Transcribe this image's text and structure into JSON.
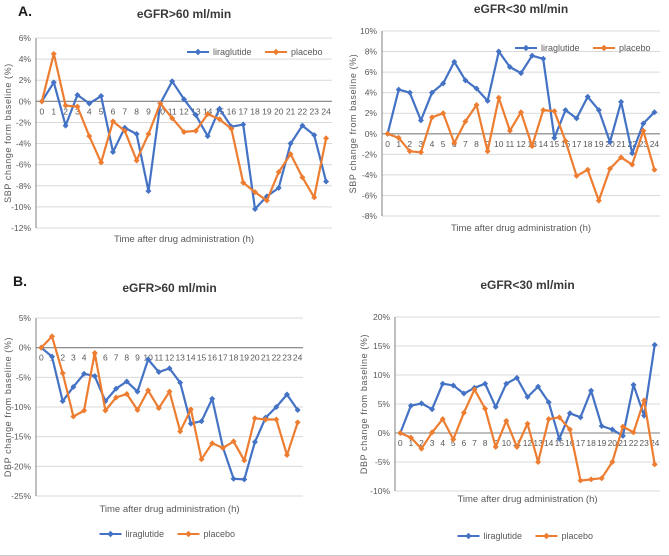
{
  "panels": {
    "a": "A.",
    "b": "B."
  },
  "colors": {
    "liraglutide": "#4472C4",
    "placebo": "#ED7D31",
    "gridline": "#D9D9D9",
    "axis": "#7F7F7F",
    "tick_text": "#595959",
    "title_text": "#3A3A3A"
  },
  "chart_data": [
    {
      "id": "sbp-egfr-gt60",
      "type": "line",
      "panel": "A",
      "title": "eGFR>60 ml/min",
      "xlabel": "Time after drug administration (h)",
      "ylabel": "SBP change form baseline (%)",
      "ylim": [
        -12,
        6
      ],
      "ytick_step": 2,
      "ytick_suffix": "%",
      "grid": true,
      "legend_position": "inside-top-right",
      "x": [
        0,
        1,
        2,
        3,
        4,
        5,
        6,
        7,
        8,
        9,
        10,
        11,
        12,
        13,
        14,
        15,
        16,
        17,
        18,
        19,
        20,
        21,
        22,
        23,
        24
      ],
      "series": [
        {
          "name": "liraglutide",
          "color": "#4472C4",
          "values": [
            0,
            1.8,
            -2.3,
            0.6,
            -0.2,
            0.5,
            -4.8,
            -2.5,
            -3.1,
            -8.5,
            -0.2,
            1.9,
            0.2,
            -1.3,
            -3.3,
            -0.7,
            -2.4,
            -2.2,
            -10.2,
            -9.0,
            -8.2,
            -4.0,
            -2.3,
            -3.2,
            -7.6
          ]
        },
        {
          "name": "placebo",
          "color": "#ED7D31",
          "values": [
            0,
            4.5,
            -0.4,
            -0.5,
            -3.3,
            -5.8,
            -1.9,
            -2.8,
            -5.6,
            -3.1,
            -0.2,
            -1.6,
            -2.9,
            -2.8,
            -1.2,
            -1.7,
            -2.6,
            -7.7,
            -8.6,
            -9.4,
            -6.7,
            -5.0,
            -7.2,
            -9.1,
            -3.5
          ]
        }
      ]
    },
    {
      "id": "sbp-egfr-lt30",
      "type": "line",
      "panel": "A",
      "title": "eGFR<30 ml/min",
      "xlabel": "Time after drug administration (h)",
      "ylabel": "SBP change from baseline (%)",
      "ylim": [
        -8,
        10
      ],
      "ytick_step": 2,
      "ytick_suffix": "%",
      "grid": true,
      "legend_position": "inside-top-right",
      "x": [
        0,
        1,
        2,
        3,
        4,
        5,
        6,
        7,
        8,
        9,
        10,
        11,
        12,
        13,
        14,
        15,
        16,
        17,
        18,
        19,
        20,
        21,
        22,
        23,
        24
      ],
      "series": [
        {
          "name": "liraglutide",
          "color": "#4472C4",
          "values": [
            0,
            4.3,
            4.0,
            1.3,
            4.0,
            4.9,
            7.0,
            5.2,
            4.4,
            3.2,
            8.0,
            6.5,
            5.9,
            7.6,
            7.3,
            -0.4,
            2.3,
            1.5,
            3.6,
            2.3,
            -0.8,
            3.1,
            -1.9,
            1.0,
            2.1
          ]
        },
        {
          "name": "placebo",
          "color": "#ED7D31",
          "values": [
            0,
            -0.4,
            -1.7,
            -1.8,
            1.6,
            2.0,
            -0.9,
            1.2,
            2.8,
            -1.7,
            3.5,
            0.3,
            2.1,
            -1.2,
            2.3,
            2.2,
            -0.7,
            -4.1,
            -3.5,
            -6.5,
            -3.4,
            -2.3,
            -3.0,
            0.3,
            -3.5
          ]
        }
      ]
    },
    {
      "id": "dbp-egfr-gt60",
      "type": "line",
      "panel": "B",
      "title": "eGFR>60 ml/min",
      "xlabel": "Time after drug administration (h)",
      "ylabel": "DBP change from baseline (%)",
      "ylim": [
        -25,
        5
      ],
      "ytick_step": 5,
      "ytick_suffix": "%",
      "grid": true,
      "legend_position": "below",
      "x": [
        0,
        1,
        2,
        3,
        4,
        5,
        6,
        7,
        8,
        9,
        10,
        11,
        12,
        13,
        14,
        15,
        16,
        17,
        18,
        19,
        20,
        21,
        22,
        23,
        24
      ],
      "series": [
        {
          "name": "liraglutide",
          "color": "#4472C4",
          "values": [
            0,
            -1.5,
            -9.0,
            -6.6,
            -4.4,
            -4.8,
            -9.0,
            -6.9,
            -5.7,
            -7.4,
            -2.0,
            -4.1,
            -3.5,
            -5.9,
            -12.8,
            -12.4,
            -8.6,
            -16.8,
            -22.1,
            -22.2,
            -15.9,
            -11.8,
            -10.0,
            -7.9,
            -10.5
          ]
        },
        {
          "name": "placebo",
          "color": "#ED7D31",
          "values": [
            0,
            1.9,
            -4.3,
            -11.6,
            -10.6,
            -0.9,
            -10.6,
            -8.4,
            -7.8,
            -10.5,
            -7.2,
            -10.2,
            -7.4,
            -14.1,
            -10.4,
            -18.8,
            -16.1,
            -16.9,
            -15.8,
            -19.0,
            -11.9,
            -12.1,
            -12.1,
            -18.1,
            -12.6
          ]
        }
      ]
    },
    {
      "id": "dbp-egfr-lt30",
      "type": "line",
      "panel": "B",
      "title": "eGFR<30 ml/min",
      "xlabel": "Time after drug administration (h)",
      "ylabel": "DBP change from baseline (%)",
      "ylim": [
        -10,
        20
      ],
      "ytick_step": 5,
      "ytick_suffix": "%",
      "grid": true,
      "legend_position": "below",
      "x": [
        0,
        1,
        2,
        3,
        4,
        5,
        6,
        7,
        8,
        9,
        10,
        11,
        12,
        13,
        14,
        15,
        16,
        17,
        18,
        19,
        20,
        21,
        22,
        23,
        24
      ],
      "series": [
        {
          "name": "liraglutide",
          "color": "#4472C4",
          "values": [
            0,
            4.7,
            5.1,
            4.1,
            8.5,
            8.2,
            6.8,
            7.8,
            8.5,
            4.5,
            8.5,
            9.5,
            6.2,
            8.0,
            5.3,
            -1.0,
            3.4,
            2.7,
            7.3,
            1.2,
            0.6,
            -0.5,
            8.3,
            3.0,
            15.2
          ]
        },
        {
          "name": "placebo",
          "color": "#ED7D31",
          "values": [
            0,
            -0.8,
            -2.7,
            0.1,
            2.4,
            -1.1,
            3.5,
            7.5,
            4.2,
            -2.4,
            2.1,
            -2.4,
            1.6,
            -5.0,
            2.4,
            2.7,
            0.6,
            -8.2,
            -8.0,
            -7.8,
            -5.0,
            1.1,
            0.1,
            5.6,
            -5.4
          ]
        }
      ]
    }
  ]
}
